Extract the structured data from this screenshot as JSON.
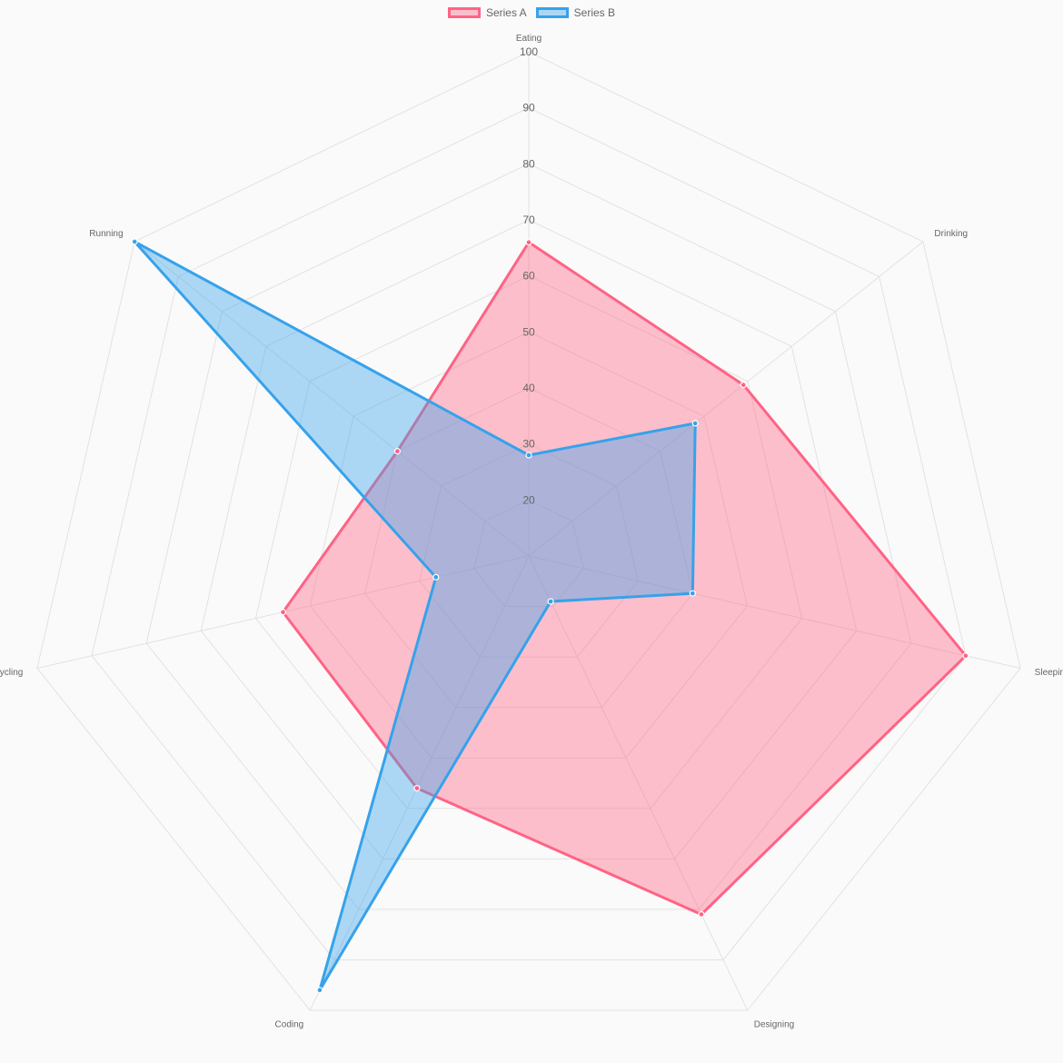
{
  "chart_data": {
    "type": "radar",
    "categories": [
      "Eating",
      "Drinking",
      "Sleeping",
      "Designing",
      "Coding",
      "Cycling",
      "Running"
    ],
    "series": [
      {
        "name": "Series A",
        "values": [
          66,
          59,
          90,
          81,
          56,
          55,
          40
        ],
        "stroke": "#ff6384",
        "fill": "#ff638466"
      },
      {
        "name": "Series B",
        "values": [
          28,
          48,
          40,
          19,
          96,
          27,
          100
        ],
        "stroke": "#36a2eb",
        "fill": "#36a2eb66"
      }
    ],
    "ticks": [
      20,
      30,
      40,
      50,
      60,
      70,
      80,
      90,
      100
    ],
    "r_min": 10,
    "r_max": 100,
    "legend_position": "top",
    "grid": true
  }
}
